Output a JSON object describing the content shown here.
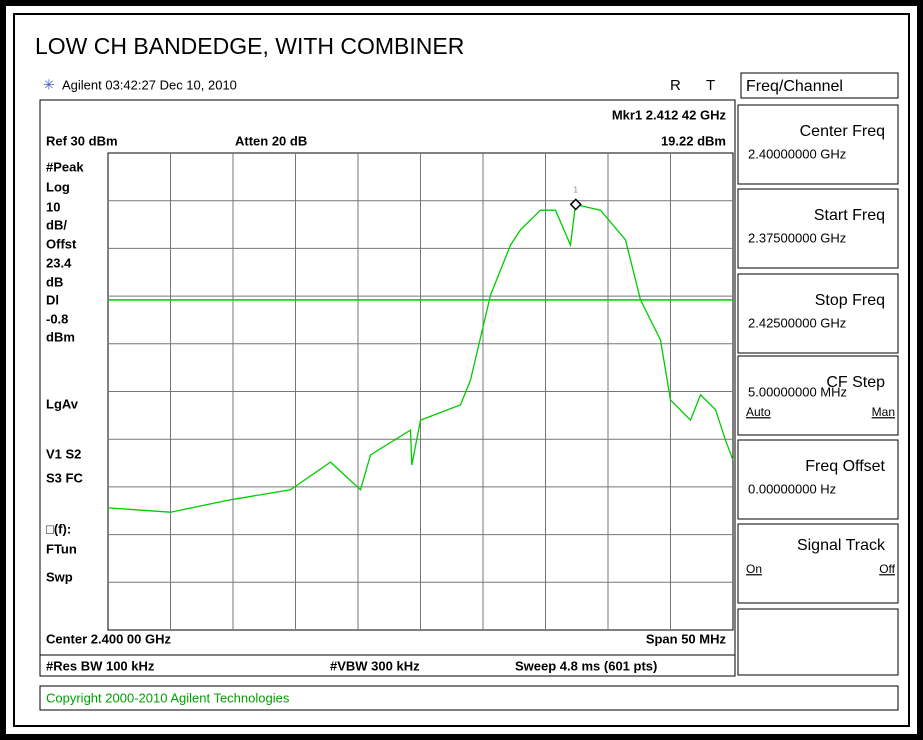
{
  "title": "LOW CH BANDEDGE, WITH COMBINER",
  "header": {
    "status": "Agilent 03:42:27  Dec 10, 2010",
    "flag_r": "R",
    "flag_t": "T"
  },
  "readout": {
    "marker": "Mkr1  2.412 42 GHz",
    "marker_level": "19.22 dBm",
    "ref": "Ref 30 dBm",
    "atten": "Atten 20 dB"
  },
  "left_labels": [
    "#Peak",
    "Log",
    "10",
    "dB/",
    "Offst",
    "23.4",
    "dB",
    "Dl",
    "-0.8",
    "dBm",
    "LgAv",
    "V1  S2",
    "S3  FC",
    "□(f):",
    "FTun",
    "Swp"
  ],
  "footer": {
    "center": "Center 2.400 00 GHz",
    "span": "Span 50 MHz",
    "rbw": "#Res BW 100 kHz",
    "vbw": "#VBW 300 kHz",
    "sweep": "Sweep 4.8 ms (601 pts)"
  },
  "softkeys": {
    "menu": "Freq/Channel",
    "keys": [
      {
        "label": "Center Freq",
        "value": "2.40000000 GHz"
      },
      {
        "label": "Start Freq",
        "value": "2.37500000 GHz"
      },
      {
        "label": "Stop Freq",
        "value": "2.42500000 GHz"
      },
      {
        "label": "CF Step",
        "value": "5.00000000 MHz",
        "options": [
          "Auto",
          "Man"
        ]
      },
      {
        "label": "Freq Offset",
        "value": "0.00000000  Hz"
      },
      {
        "label": "Signal Track",
        "options": [
          "On",
          "Off"
        ]
      }
    ]
  },
  "status_bar": "Copyright 2000-2010 Agilent Technologies",
  "chart_data": {
    "type": "line",
    "xlim": [
      2.375,
      2.425
    ],
    "ylim": [
      -70,
      30
    ],
    "color": "#00cc00",
    "grid": true,
    "display_line": -0.8,
    "marker": {
      "x": 2.41242,
      "value": 19.22,
      "label": "1"
    },
    "x": [
      2.375,
      2.38,
      2.3848,
      2.3896,
      2.3928,
      2.3952,
      2.396,
      2.3992,
      2.3993,
      2.4,
      2.4032,
      2.404,
      2.4056,
      2.4072,
      2.408,
      2.4096,
      2.4108,
      2.412,
      2.4124,
      2.4144,
      2.4164,
      2.4176,
      2.4192,
      2.42,
      2.4216,
      2.4224,
      2.4236,
      2.4244,
      2.425
    ],
    "values": [
      -44.4,
      -45.3,
      -42.7,
      -40.6,
      -34.8,
      -40.6,
      -33.3,
      -28.1,
      -35.4,
      -26,
      -22.8,
      -17.6,
      0.2,
      10.7,
      13.9,
      18,
      18,
      10.7,
      19.2,
      18,
      11.8,
      -0.8,
      -9.2,
      -21.8,
      -26,
      -20.7,
      -23.8,
      -30.2,
      -34.4
    ]
  }
}
